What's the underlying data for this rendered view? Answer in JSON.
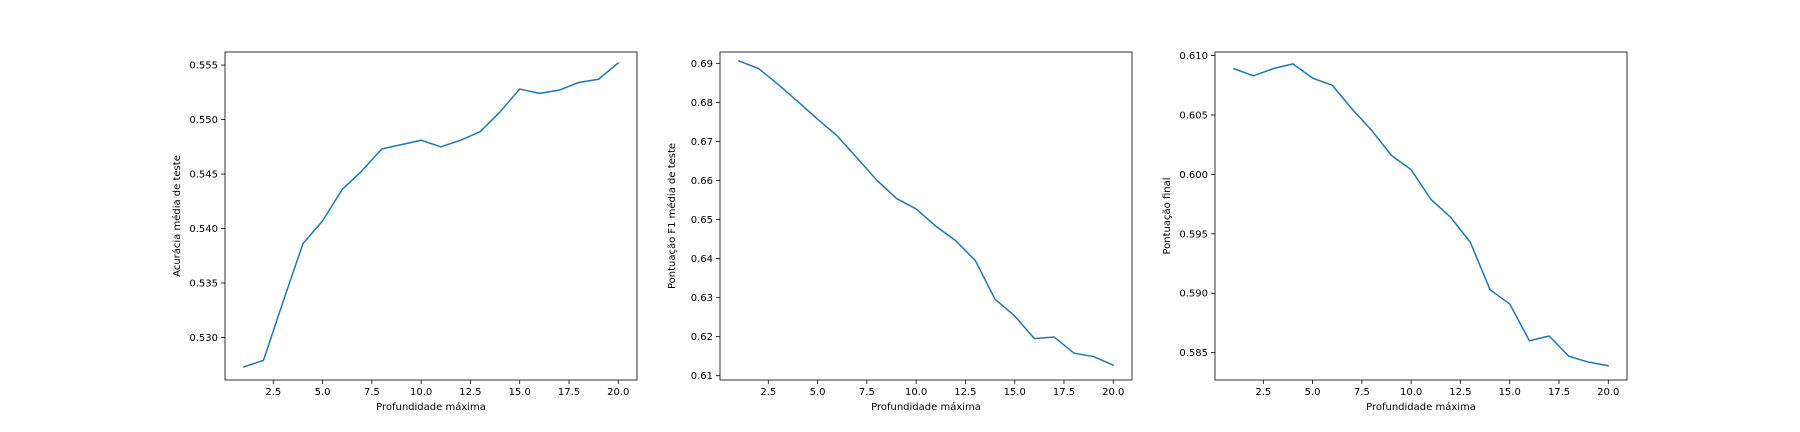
{
  "figure": {
    "background": "#ffffff",
    "line_color": "#1f77b4"
  },
  "chart_data": [
    {
      "type": "line",
      "xlabel": "Profundidade máxima",
      "ylabel": "Acurácia média de teste",
      "xlim": [
        0.05,
        20.95
      ],
      "ylim": [
        0.5261,
        0.5562
      ],
      "xticks": [
        2.5,
        5.0,
        7.5,
        10.0,
        12.5,
        15.0,
        17.5,
        20.0
      ],
      "xtick_labels": [
        "2.5",
        "5.0",
        "7.5",
        "10.0",
        "12.5",
        "15.0",
        "17.5",
        "20.0"
      ],
      "yticks": [
        0.53,
        0.535,
        0.54,
        0.545,
        0.55,
        0.555
      ],
      "ytick_labels": [
        "0.530",
        "0.535",
        "0.540",
        "0.545",
        "0.550",
        "0.555"
      ],
      "grid": false,
      "x": [
        1,
        2,
        3,
        4,
        5,
        6,
        7,
        8,
        9,
        10,
        11,
        12,
        13,
        14,
        15,
        16,
        17,
        18,
        19,
        20
      ],
      "series": [
        {
          "values": [
            0.5273,
            0.5279,
            0.5333,
            0.5386,
            0.5407,
            0.5436,
            0.5453,
            0.5473,
            0.5477,
            0.5481,
            0.5475,
            0.5481,
            0.5489,
            0.5507,
            0.5528,
            0.5524,
            0.5527,
            0.5534,
            0.5537,
            0.5552
          ]
        }
      ]
    },
    {
      "type": "line",
      "xlabel": "Profundidade máxima",
      "ylabel": "Pontuação F1 média de teste",
      "xlim": [
        0.05,
        20.95
      ],
      "ylim": [
        0.6089,
        0.6929
      ],
      "xticks": [
        2.5,
        5.0,
        7.5,
        10.0,
        12.5,
        15.0,
        17.5,
        20.0
      ],
      "xtick_labels": [
        "2.5",
        "5.0",
        "7.5",
        "10.0",
        "12.5",
        "15.0",
        "17.5",
        "20.0"
      ],
      "yticks": [
        0.61,
        0.62,
        0.63,
        0.64,
        0.65,
        0.66,
        0.67,
        0.68,
        0.69
      ],
      "ytick_labels": [
        "0.61",
        "0.62",
        "0.63",
        "0.64",
        "0.65",
        "0.66",
        "0.67",
        "0.68",
        "0.69"
      ],
      "grid": false,
      "x": [
        1,
        2,
        3,
        4,
        5,
        6,
        7,
        8,
        9,
        10,
        11,
        12,
        13,
        14,
        15,
        16,
        17,
        18,
        19,
        20
      ],
      "series": [
        {
          "values": [
            0.6906,
            0.6887,
            0.6846,
            0.6802,
            0.6757,
            0.6714,
            0.6658,
            0.6601,
            0.6554,
            0.6527,
            0.6483,
            0.6446,
            0.6395,
            0.6296,
            0.6253,
            0.6195,
            0.6199,
            0.6158,
            0.6149,
            0.6127
          ]
        }
      ]
    },
    {
      "type": "line",
      "xlabel": "Profundidade máxima",
      "ylabel": "Pontuação final",
      "xlim": [
        0.05,
        20.95
      ],
      "ylim": [
        0.5827,
        0.6103
      ],
      "xticks": [
        2.5,
        5.0,
        7.5,
        10.0,
        12.5,
        15.0,
        17.5,
        20.0
      ],
      "xtick_labels": [
        "2.5",
        "5.0",
        "7.5",
        "10.0",
        "12.5",
        "15.0",
        "17.5",
        "20.0"
      ],
      "yticks": [
        0.585,
        0.59,
        0.595,
        0.6,
        0.605,
        0.61
      ],
      "ytick_labels": [
        "0.585",
        "0.590",
        "0.595",
        "0.600",
        "0.605",
        "0.610"
      ],
      "grid": false,
      "x": [
        1,
        2,
        3,
        4,
        5,
        6,
        7,
        8,
        9,
        10,
        11,
        12,
        13,
        14,
        15,
        16,
        17,
        18,
        19,
        20
      ],
      "series": [
        {
          "values": [
            0.6089,
            0.6083,
            0.6089,
            0.6093,
            0.6081,
            0.6075,
            0.6055,
            0.6037,
            0.6016,
            0.6004,
            0.5979,
            0.5964,
            0.5943,
            0.5903,
            0.5891,
            0.586,
            0.5864,
            0.5847,
            0.5842,
            0.5839
          ]
        }
      ]
    }
  ]
}
